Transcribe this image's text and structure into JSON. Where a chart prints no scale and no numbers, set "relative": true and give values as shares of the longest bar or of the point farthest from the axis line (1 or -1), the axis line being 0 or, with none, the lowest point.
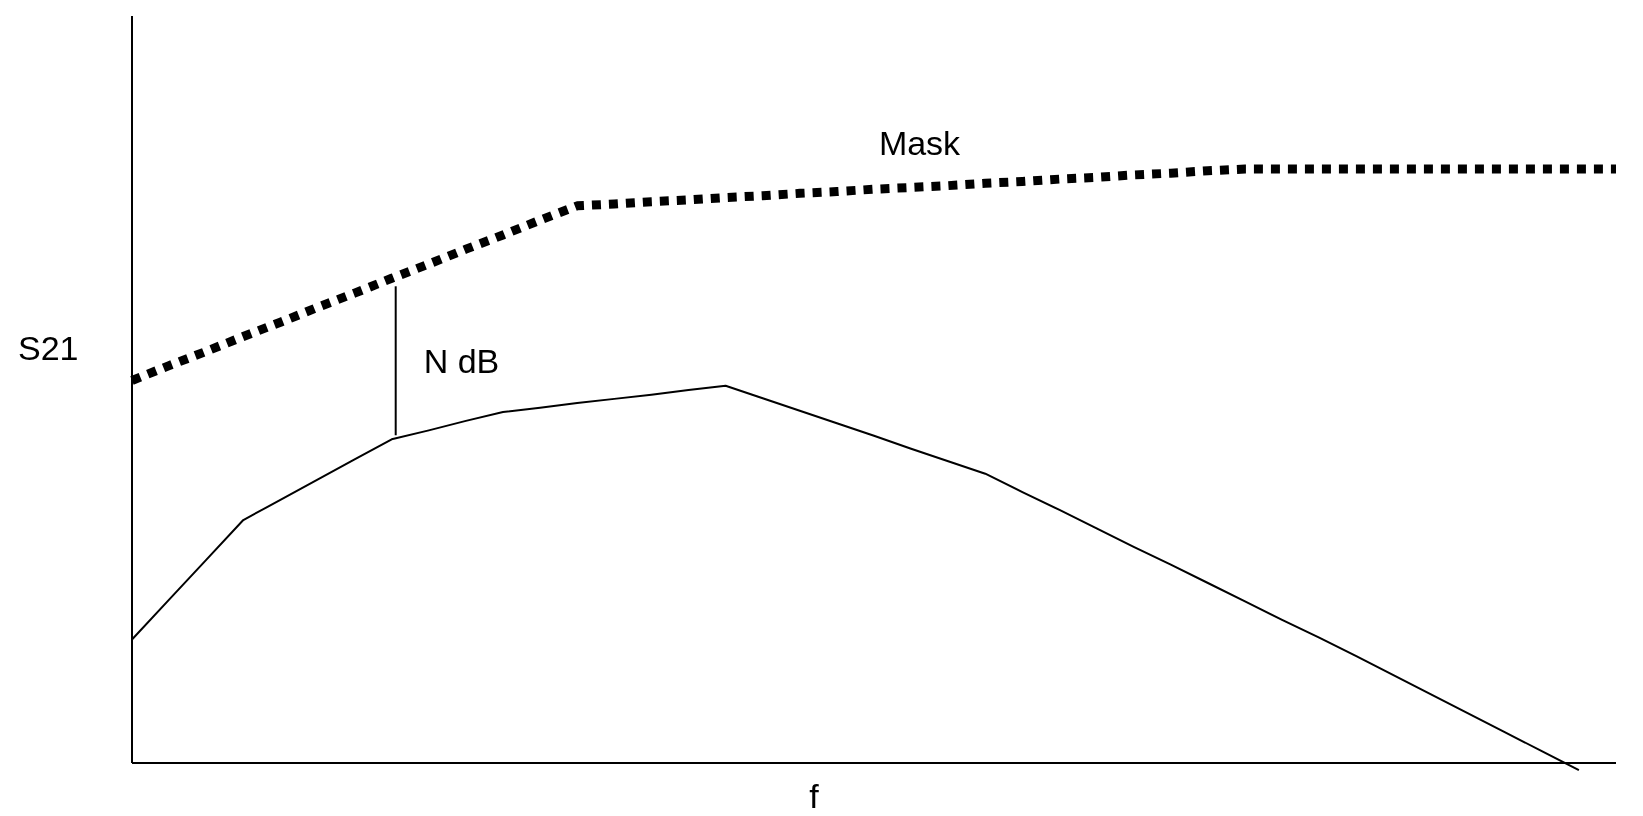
{
  "chart_data": {
    "type": "line",
    "relative": true,
    "xlabel": "f",
    "ylabel": "S21",
    "annotations": [
      "N dB"
    ],
    "legend": false,
    "marker": "none",
    "categories": [
      null,
      null,
      null,
      null,
      null,
      null,
      null,
      null,
      null,
      null,
      null,
      null,
      null,
      null,
      null,
      null,
      null,
      null,
      null,
      null,
      null,
      null,
      null,
      null,
      null,
      null,
      null,
      null,
      null,
      null,
      null,
      null,
      null,
      null,
      null,
      null,
      null,
      null,
      null,
      null,
      null
    ],
    "series": [
      {
        "name": "Mask",
        "color": "#000000",
        "line_style": "dotted",
        "values": [
          0.644,
          0.669,
          0.693,
          0.718,
          0.742,
          0.767,
          0.791,
          0.816,
          0.84,
          0.865,
          0.889,
          0.914,
          0.938,
          0.941,
          0.945,
          0.948,
          0.952,
          0.955,
          0.959,
          0.962,
          0.966,
          0.969,
          0.972,
          0.976,
          0.979,
          0.983,
          0.986,
          0.99,
          0.993,
          0.997,
          1,
          1,
          1,
          1,
          1,
          1,
          1,
          1,
          1,
          1,
          1
        ]
      },
      {
        "color": "#000000",
        "line_style": "solid",
        "values": [
          0.208,
          0.275,
          0.342,
          0.409,
          0.443,
          0.477,
          0.511,
          0.545,
          0.56,
          0.576,
          0.591,
          0.598,
          0.606,
          0.613,
          0.62,
          0.628,
          0.635,
          0.614,
          0.593,
          0.572,
          0.551,
          0.529,
          0.508,
          0.487,
          0.456,
          0.426,
          0.395,
          0.364,
          0.334,
          0.303,
          0.272,
          0.241,
          0.211,
          0.18,
          0.148,
          0.116,
          0.084,
          0.052,
          0.02,
          -0.012,
          null
        ]
      }
    ]
  }
}
